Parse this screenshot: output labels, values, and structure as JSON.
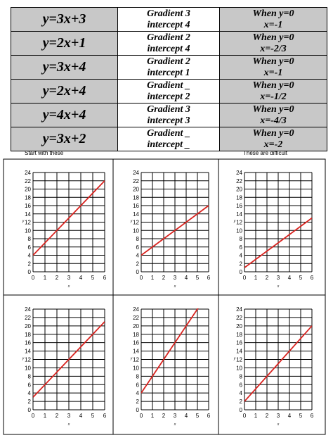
{
  "rows": [
    {
      "equation": "y=3x+3",
      "gradient": "Gradient 3",
      "intercept": "intercept 4",
      "when": "When y=0",
      "x_value": "x=-1"
    },
    {
      "equation": "y=2x+1",
      "gradient": "Gradient 2",
      "intercept": "intercept 4",
      "when": "When y=0",
      "x_value": "x=-2/3"
    },
    {
      "equation": "y=3x+4",
      "gradient": "Gradient 2",
      "intercept": "intercept 1",
      "when": "When y=0",
      "x_value": "x=-1"
    },
    {
      "equation": "y=2x+4",
      "gradient": "Gradient _",
      "intercept": "intercept 2",
      "when": "When y=0",
      "x_value": "x=-1/2"
    },
    {
      "equation": "y=4x+4",
      "gradient": "Gradient 3",
      "intercept": "intercept 3",
      "when": "When y=0",
      "x_value": "x=-4/3"
    },
    {
      "equation": "y=3x+2",
      "gradient": "Gradient _",
      "intercept": "intercept _",
      "when": "When y=0",
      "x_value": "x=-2"
    }
  ],
  "captions": {
    "left": "Start with these",
    "right": "These are difficult"
  },
  "line_color": "#d9231f",
  "chart_data": [
    {
      "type": "line",
      "x": [
        0,
        6
      ],
      "y": [
        4,
        22
      ],
      "xlim": [
        0,
        6
      ],
      "ylim": [
        0,
        24
      ],
      "xlabel": "x",
      "ylabel": "y",
      "xticks": [
        0,
        1,
        2,
        3,
        4,
        5,
        6
      ],
      "yticks": [
        0,
        2,
        4,
        6,
        8,
        10,
        12,
        14,
        16,
        18,
        20,
        22,
        24
      ]
    },
    {
      "type": "line",
      "x": [
        0,
        6
      ],
      "y": [
        4,
        16
      ],
      "xlim": [
        0,
        6
      ],
      "ylim": [
        0,
        24
      ],
      "xlabel": "x",
      "ylabel": "y",
      "xticks": [
        0,
        1,
        2,
        3,
        4,
        5,
        6
      ],
      "yticks": [
        0,
        2,
        4,
        6,
        8,
        10,
        12,
        14,
        16,
        18,
        20,
        22,
        24
      ]
    },
    {
      "type": "line",
      "x": [
        0,
        6
      ],
      "y": [
        1,
        13
      ],
      "xlim": [
        0,
        6
      ],
      "ylim": [
        0,
        24
      ],
      "xlabel": "x",
      "ylabel": "y",
      "xticks": [
        0,
        1,
        2,
        3,
        4,
        5,
        6
      ],
      "yticks": [
        0,
        2,
        4,
        6,
        8,
        10,
        12,
        14,
        16,
        18,
        20,
        22,
        24
      ]
    },
    {
      "type": "line",
      "x": [
        0,
        6
      ],
      "y": [
        3,
        21
      ],
      "xlim": [
        0,
        6
      ],
      "ylim": [
        0,
        24
      ],
      "xlabel": "x",
      "ylabel": "y",
      "xticks": [
        0,
        1,
        2,
        3,
        4,
        5,
        6
      ],
      "yticks": [
        0,
        2,
        4,
        6,
        8,
        10,
        12,
        14,
        16,
        18,
        20,
        22,
        24
      ]
    },
    {
      "type": "line",
      "x": [
        0,
        5.25
      ],
      "y": [
        4,
        25
      ],
      "xlim": [
        0,
        6
      ],
      "ylim": [
        0,
        24
      ],
      "xlabel": "x",
      "ylabel": "y",
      "xticks": [
        0,
        1,
        2,
        3,
        4,
        5,
        6
      ],
      "yticks": [
        0,
        2,
        4,
        6,
        8,
        10,
        12,
        14,
        16,
        18,
        20,
        22,
        24
      ]
    },
    {
      "type": "line",
      "x": [
        0,
        6
      ],
      "y": [
        2,
        20
      ],
      "xlim": [
        0,
        6
      ],
      "ylim": [
        0,
        24
      ],
      "xlabel": "x",
      "ylabel": "y",
      "xticks": [
        0,
        1,
        2,
        3,
        4,
        5,
        6
      ],
      "yticks": [
        0,
        2,
        4,
        6,
        8,
        10,
        12,
        14,
        16,
        18,
        20,
        22,
        24
      ]
    }
  ]
}
